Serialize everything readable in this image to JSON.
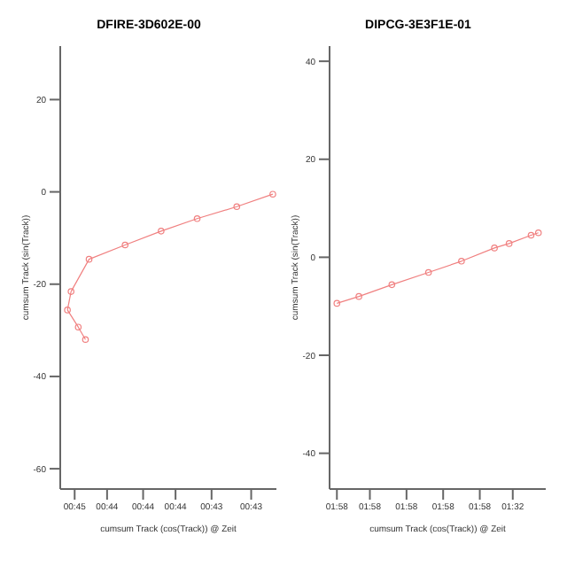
{
  "chart_data": [
    {
      "type": "line",
      "title": "DFIRE-3D602E-00",
      "xlabel": "cumsum Track (cos(Track)) @ Zeit",
      "ylabel": "cumsum Track (sin(Track))",
      "marker": "circle",
      "grid": false,
      "legend": false,
      "categories": [
        null,
        null,
        null,
        null,
        "00:45",
        null,
        null,
        null,
        null,
        null,
        null,
        null,
        null,
        "00:44",
        null,
        null,
        null,
        null,
        null,
        null,
        null,
        null,
        null,
        "00:44",
        null,
        null,
        null,
        null,
        null,
        null,
        null,
        null,
        "00:44",
        null,
        null,
        null,
        null,
        null,
        null,
        null,
        null,
        null,
        "00:43",
        null,
        null,
        null,
        null,
        null,
        null,
        null,
        null,
        null,
        null,
        "00:43",
        null,
        null,
        null,
        null,
        null,
        null,
        null
      ],
      "ylim": [
        -64.4,
        31.6
      ],
      "yticks": [
        -60,
        -40,
        -20,
        0,
        20
      ],
      "series": [
        {
          "color": "#f08080",
          "values": [
            null,
            null,
            null,
            -21.6,
            null,
            null,
            null,
            null,
            -14.6,
            null,
            null,
            null,
            null,
            null,
            null,
            null,
            null,
            null,
            -11.5,
            null,
            null,
            null,
            null,
            null,
            null,
            null,
            null,
            null,
            -8.5,
            null,
            null,
            null,
            null,
            null,
            null,
            null,
            null,
            null,
            -5.8,
            null,
            null,
            null,
            null,
            null,
            null,
            null,
            null,
            null,
            null,
            -3.2,
            null,
            null,
            null,
            null,
            null,
            null,
            null,
            null,
            null,
            -0.5,
            null
          ]
        },
        {
          "color": "#f08080",
          "marker": "none",
          "values": [
            null,
            null,
            -25.6,
            -21.6,
            null,
            null,
            null,
            null,
            null,
            null,
            null,
            null,
            null,
            null,
            null,
            null,
            null,
            null,
            null,
            null,
            null,
            null,
            null,
            null,
            null,
            null,
            null,
            null,
            null,
            null,
            null,
            null,
            null,
            null,
            null,
            null,
            null,
            null,
            null,
            null,
            null,
            null,
            null,
            null,
            null,
            null,
            null,
            null,
            null,
            null,
            null,
            null,
            null,
            null,
            null,
            null,
            null,
            null,
            null,
            null,
            null
          ]
        },
        {
          "color": "#f08080",
          "values": [
            null,
            null,
            -25.6,
            null,
            null,
            -29.3,
            null,
            -32,
            null,
            null,
            null,
            null,
            null,
            null,
            null,
            null,
            null,
            null,
            null,
            null,
            null,
            null,
            null,
            null,
            null,
            null,
            null,
            null,
            null,
            null,
            null,
            null,
            null,
            null,
            null,
            null,
            null,
            null,
            null,
            null,
            null,
            null,
            null,
            null,
            null,
            null,
            null,
            null,
            null,
            null,
            null,
            null,
            null,
            null,
            null,
            null,
            null,
            null,
            null,
            null,
            null
          ]
        }
      ]
    },
    {
      "type": "line",
      "title": "DIPCG-3E3F1E-01",
      "xlabel": "cumsum Track (cos(Track)) @ Zeit",
      "ylabel": "cumsum Track (sin(Track))",
      "marker": "circle",
      "grid": false,
      "legend": false,
      "categories": [
        null,
        null,
        "01:58",
        null,
        null,
        null,
        null,
        null,
        null,
        null,
        null,
        "01:58",
        null,
        null,
        null,
        null,
        null,
        null,
        null,
        null,
        null,
        "01:58",
        null,
        null,
        null,
        null,
        null,
        null,
        null,
        null,
        null,
        "01:58",
        null,
        null,
        null,
        null,
        null,
        null,
        null,
        null,
        null,
        "01:58",
        null,
        null,
        null,
        null,
        null,
        null,
        null,
        null,
        "01:32",
        null,
        null,
        null,
        null,
        null,
        null,
        null,
        null,
        null
      ],
      "ylim": [
        -47.3,
        43.1
      ],
      "yticks": [
        -40,
        -20,
        0,
        20,
        40
      ],
      "series": [
        {
          "color": "#f08080",
          "values": [
            null,
            null,
            -9.4,
            null,
            null,
            null,
            null,
            null,
            -8,
            null,
            null,
            null,
            null,
            null,
            null,
            null,
            null,
            -5.6,
            null,
            null,
            null,
            null,
            null,
            null,
            null,
            null,
            null,
            -3.1,
            null,
            null,
            null,
            null,
            null,
            null,
            null,
            null,
            -0.8,
            null,
            null,
            null,
            null,
            null,
            null,
            null,
            null,
            1.9,
            null,
            null,
            null,
            2.8,
            null,
            null,
            null,
            null,
            null,
            4.5,
            null,
            5,
            null,
            null
          ]
        }
      ]
    }
  ]
}
